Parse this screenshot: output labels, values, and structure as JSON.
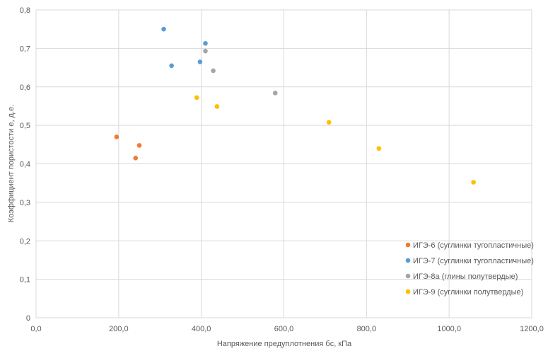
{
  "chart_data": {
    "type": "scatter",
    "xlabel": "Напряжение предуплотнения бc, кПа",
    "ylabel": "Коэффициент пористости e, д.е.",
    "xlim": [
      0,
      1200
    ],
    "ylim": [
      0,
      0.8
    ],
    "x_ticks": [
      "0,0",
      "200,0",
      "400,0",
      "600,0",
      "800,0",
      "1000,0",
      "1200,0"
    ],
    "y_ticks": [
      "0",
      "0,1",
      "0,2",
      "0,3",
      "0,4",
      "0,5",
      "0,6",
      "0,7",
      "0,8"
    ],
    "grid": "vertical and horizontal",
    "legend_position": "bottom-right",
    "series": [
      {
        "name": "ИГЭ-6 (суглинки тугопластичные)",
        "color": "#ED7D31",
        "points": [
          [
            195,
            0.47
          ],
          [
            250,
            0.448
          ],
          [
            241,
            0.415
          ]
        ]
      },
      {
        "name": "ИГЭ-7 (суглинки тугопластичные)",
        "color": "#5B9BD5",
        "points": [
          [
            309,
            0.75
          ],
          [
            328,
            0.655
          ],
          [
            410,
            0.713
          ],
          [
            397,
            0.665
          ]
        ]
      },
      {
        "name": "ИГЭ-8а (глины полутвердые)",
        "color": "#A5A5A5",
        "points": [
          [
            410,
            0.693
          ],
          [
            429,
            0.642
          ],
          [
            579,
            0.584
          ]
        ]
      },
      {
        "name": "ИГЭ-9 (суглинки полутвердые)",
        "color": "#FFC000",
        "points": [
          [
            389,
            0.572
          ],
          [
            438,
            0.549
          ],
          [
            709,
            0.508
          ],
          [
            830,
            0.44
          ],
          [
            1059,
            0.352
          ]
        ]
      }
    ]
  }
}
